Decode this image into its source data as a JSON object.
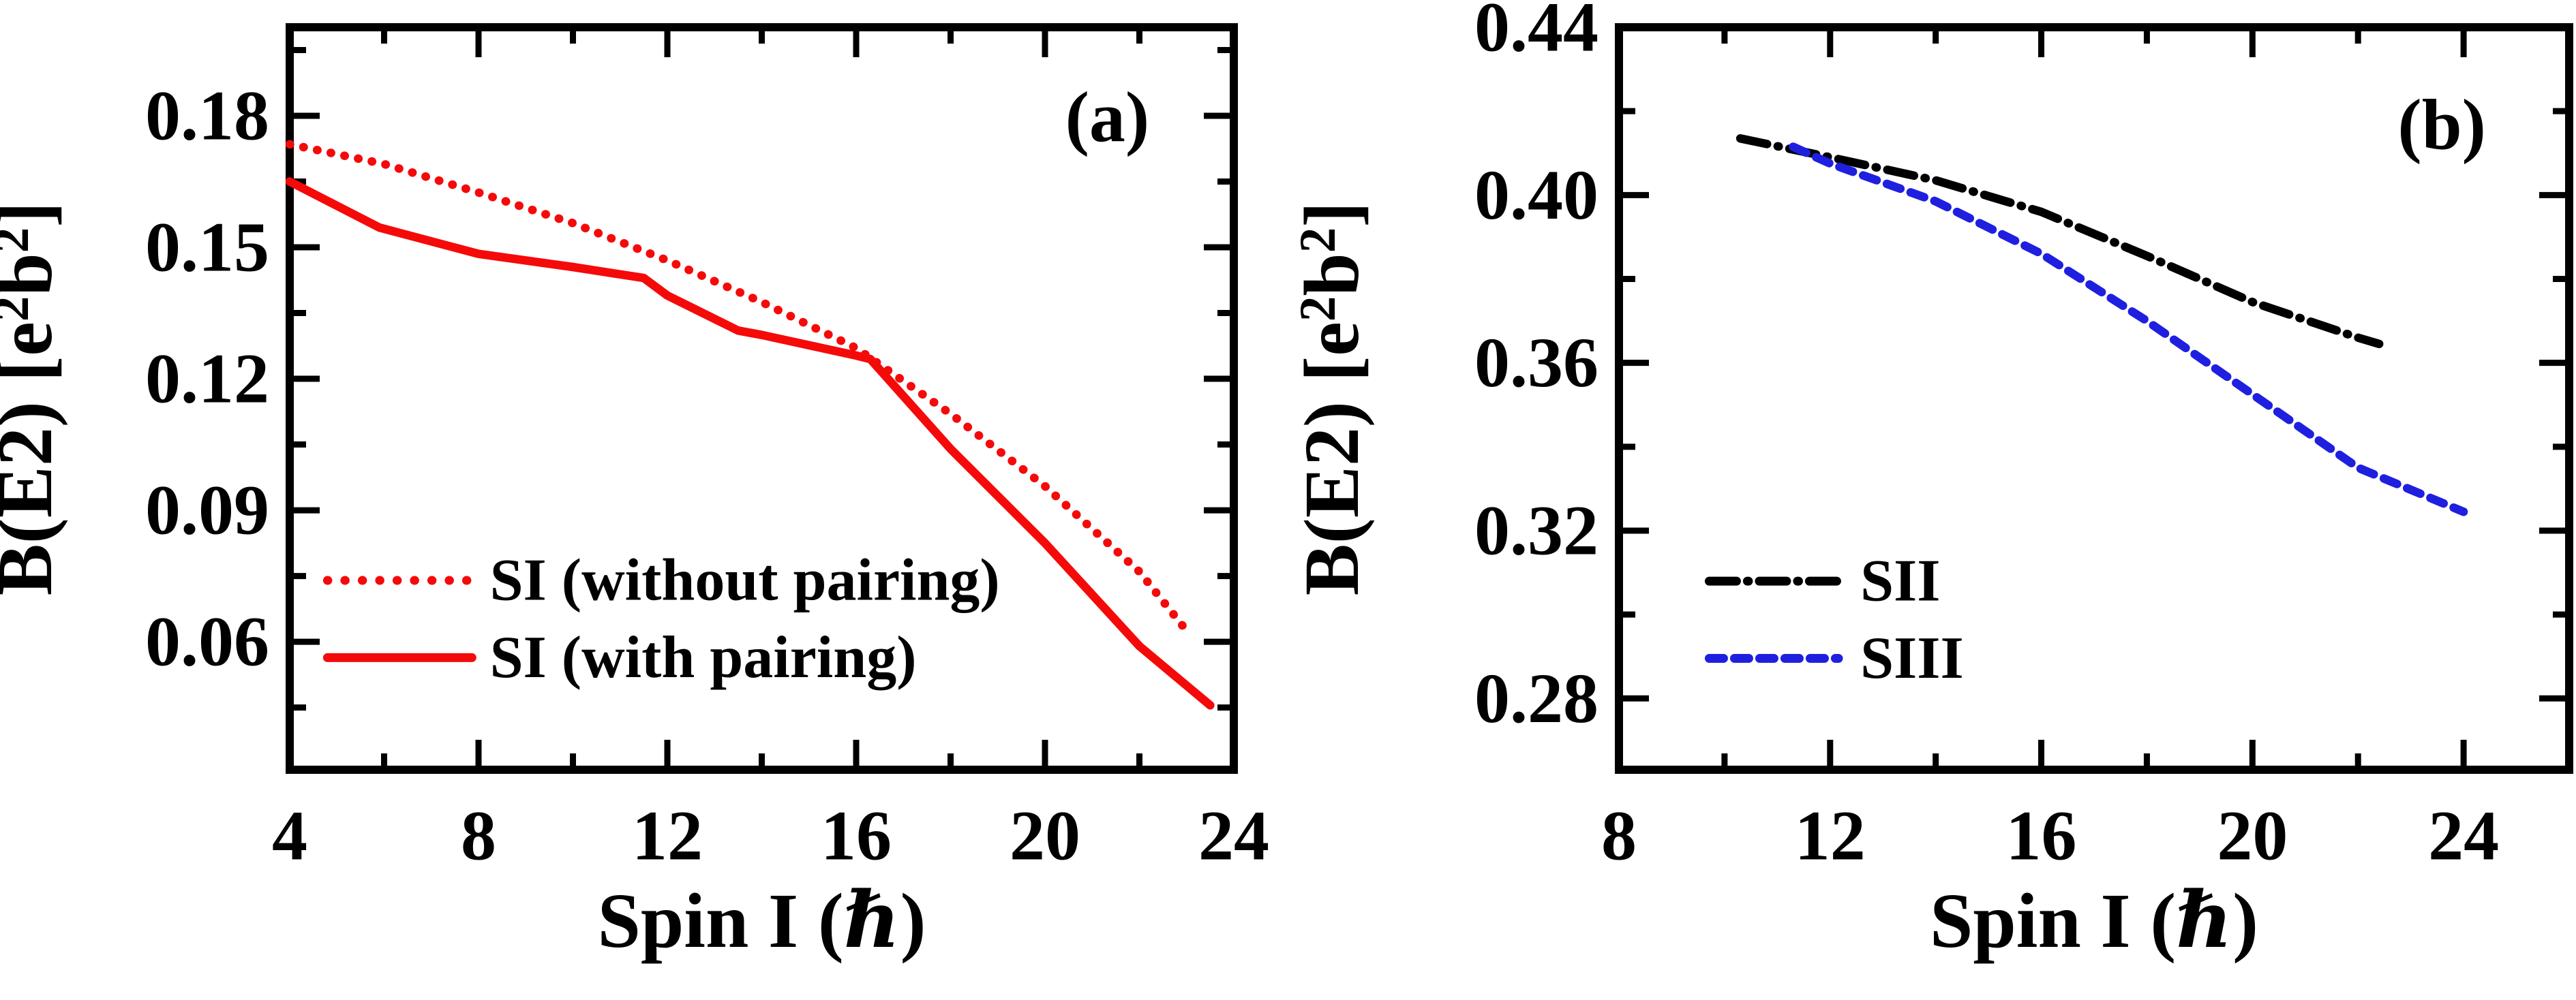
{
  "figure": {
    "background": "#ffffff",
    "frame_color": "#000000",
    "panel_tags": [
      "(a)",
      "(b)"
    ]
  },
  "chart_data": [
    {
      "type": "line",
      "panel_tag": "(a)",
      "xlabel": "Spin I (ℏ)",
      "ylabel": "B(E2) [e²b²]",
      "xlim": [
        4,
        24
      ],
      "ylim": [
        0.0308,
        0.2002
      ],
      "x_major_ticks": [
        4,
        8,
        12,
        16,
        20,
        24
      ],
      "x_minor_ticks": [
        6,
        10,
        14,
        18,
        22
      ],
      "x_tick_labels": [
        "4",
        "8",
        "12",
        "16",
        "20",
        "24"
      ],
      "y_major_ticks": [
        0.18,
        0.15,
        0.12,
        0.09,
        0.06
      ],
      "y_minor_ticks": [
        0.195,
        0.165,
        0.135,
        0.105,
        0.075,
        0.045
      ],
      "y_tick_labels": [
        "0.18",
        "0.15",
        "0.12",
        "0.09",
        "0.06"
      ],
      "grid": false,
      "legend_position": "lower-left",
      "series": [
        {
          "name": "SI (without pairing)",
          "color": "#f50a0a",
          "line_style": "dotted",
          "x": [
            4,
            6,
            8,
            10,
            12,
            14,
            16,
            18,
            20,
            22,
            23
          ],
          "y": [
            0.1735,
            0.169,
            0.1625,
            0.1555,
            0.147,
            0.1375,
            0.127,
            0.112,
            0.0955,
            0.076,
            0.0625
          ]
        },
        {
          "name": "SI (with pairing)",
          "color": "#f50a0a",
          "line_style": "solid",
          "x": [
            4,
            5.9,
            8,
            10,
            11.5,
            12,
            13.5,
            14,
            16,
            16.3,
            18,
            20,
            22,
            23.5
          ],
          "y": [
            0.165,
            0.1545,
            0.1485,
            0.1455,
            0.143,
            0.139,
            0.131,
            0.13,
            0.1253,
            0.1245,
            0.104,
            0.0825,
            0.059,
            0.0455
          ]
        }
      ]
    },
    {
      "type": "line",
      "panel_tag": "(b)",
      "xlabel": "Spin I (ℏ)",
      "ylabel": "B(E2) [e²b²]",
      "xlim": [
        8,
        26
      ],
      "ylim": [
        0.263,
        0.44
      ],
      "x_major_ticks": [
        8,
        12,
        16,
        20,
        24
      ],
      "x_minor_ticks": [
        10,
        14,
        18,
        22
      ],
      "x_tick_labels": [
        "8",
        "12",
        "16",
        "20",
        "24"
      ],
      "y_major_ticks": [
        0.44,
        0.4,
        0.36,
        0.32,
        0.28
      ],
      "y_minor_ticks": [
        0.42,
        0.38,
        0.34,
        0.3
      ],
      "y_tick_labels": [
        "0.44",
        "0.40",
        "0.36",
        "0.32",
        "0.28"
      ],
      "grid": false,
      "legend_position": "lower-left",
      "series": [
        {
          "name": "SII",
          "color": "#000000",
          "line_style": "dashdot",
          "x": [
            10.3,
            12,
            14,
            16,
            18,
            20,
            22,
            22.4
          ],
          "y": [
            0.4135,
            0.409,
            0.4035,
            0.396,
            0.3855,
            0.3745,
            0.366,
            0.3645
          ]
        },
        {
          "name": "SIII",
          "color": "#1f1fe0",
          "line_style": "dashed",
          "x": [
            11.3,
            12,
            14,
            16,
            18,
            20,
            22,
            24
          ],
          "y": [
            0.4115,
            0.4075,
            0.3985,
            0.386,
            0.37,
            0.3525,
            0.335,
            0.3245
          ]
        }
      ]
    }
  ]
}
